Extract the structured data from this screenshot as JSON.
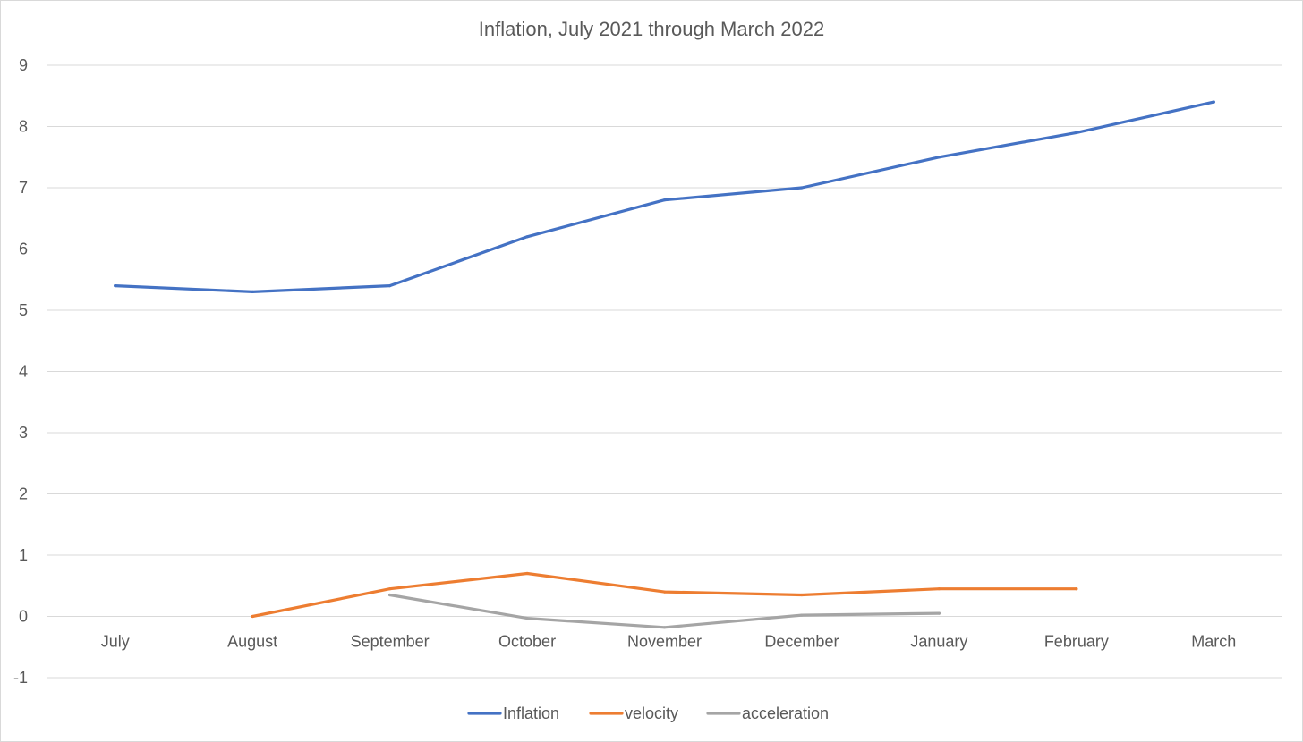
{
  "chart_data": {
    "type": "line",
    "title": "Inflation, July 2021 through March 2022",
    "xlabel": "",
    "ylabel": "",
    "categories": [
      "July",
      "August",
      "September",
      "October",
      "November",
      "December",
      "January",
      "February",
      "March"
    ],
    "ylim": [
      -1,
      9
    ],
    "yticks": [
      "-1",
      "0",
      "1",
      "2",
      "3",
      "4",
      "5",
      "6",
      "7",
      "8",
      "9"
    ],
    "grid": true,
    "legend_position": "bottom",
    "series": [
      {
        "name": "Inflation",
        "color": "#4472C4",
        "values": [
          5.4,
          5.3,
          5.4,
          6.2,
          6.8,
          7.0,
          7.5,
          7.9,
          8.4
        ]
      },
      {
        "name": "velocity",
        "color": "#ED7D31",
        "values": [
          null,
          0.0,
          0.45,
          0.7,
          0.4,
          0.35,
          0.45,
          0.45,
          null
        ]
      },
      {
        "name": "acceleration",
        "color": "#A5A5A5",
        "values": [
          null,
          null,
          0.35,
          -0.03,
          -0.18,
          0.02,
          0.05,
          null,
          null
        ]
      }
    ]
  }
}
